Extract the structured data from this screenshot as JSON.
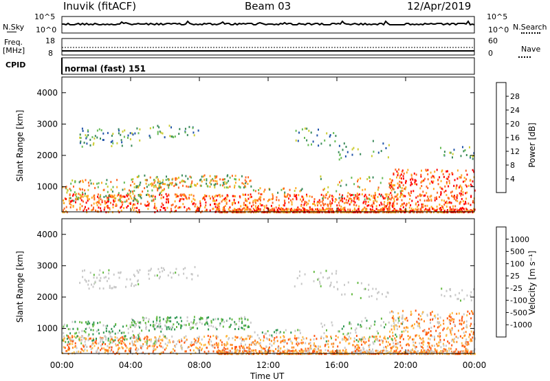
{
  "header": {
    "station": "Inuvik (fitACF)",
    "beam": "Beam 03",
    "date": "12/Apr/2019"
  },
  "top_panels": {
    "nsky_label": "N.Sky",
    "nsky_ticks": [
      "10^5",
      "10^0"
    ],
    "nsearch_label": "N.Search",
    "nsearch_ticks": [
      "10^5",
      "10^0"
    ],
    "freq_label": "Freq.",
    "freq_unit": "[MHz]",
    "freq_ticks": [
      "18",
      "8"
    ],
    "nave_label": "Nave",
    "nave_ticks": [
      "60",
      "0"
    ],
    "cpid_label": "CPID",
    "cpid_value": "normal (fast) 151"
  },
  "colors": {
    "power_scale": [
      "#0000ff",
      "#2255aa",
      "#3a8a5a",
      "#66bb55",
      "#cccc33",
      "#ffaa22",
      "#ff6622",
      "#ff0000"
    ],
    "velocity_scale": [
      "#ff0000",
      "#ff5511",
      "#ff8822",
      "#ffbb44",
      "#c8c8c8",
      "#66bb44",
      "#339955",
      "#2255aa",
      "#2233cc"
    ]
  },
  "chart_data": [
    {
      "type": "heatmap",
      "panel": "power",
      "ylabel": "Slant Range [km]",
      "yticks": [
        "4000",
        "3000",
        "2000",
        "1000"
      ],
      "ylim": [
        200,
        4500
      ],
      "x": [
        "00:00",
        "04:00",
        "08:00",
        "12:00",
        "16:00",
        "20:00",
        "00:00"
      ],
      "colorbar_label": "Power [dB]",
      "colorbar_ticks": [
        "28",
        "24",
        "20",
        "16",
        "12",
        "8",
        "4"
      ],
      "zlim": [
        0,
        30
      ],
      "grid": false
    },
    {
      "type": "heatmap",
      "panel": "velocity",
      "ylabel": "Slant Range [km]",
      "yticks": [
        "4000",
        "3000",
        "2000",
        "1000"
      ],
      "ylim": [
        200,
        4500
      ],
      "x": [
        "00:00",
        "04:00",
        "08:00",
        "12:00",
        "16:00",
        "20:00",
        "00:00"
      ],
      "xlabel": "Time UT",
      "colorbar_label": "Velocity [m s⁻¹]",
      "colorbar_ticks": [
        "1000",
        "500",
        "100",
        "25",
        "-25",
        "-100",
        "-500",
        "-1000"
      ],
      "zlim": [
        -1000,
        1000
      ],
      "grid": false
    }
  ]
}
